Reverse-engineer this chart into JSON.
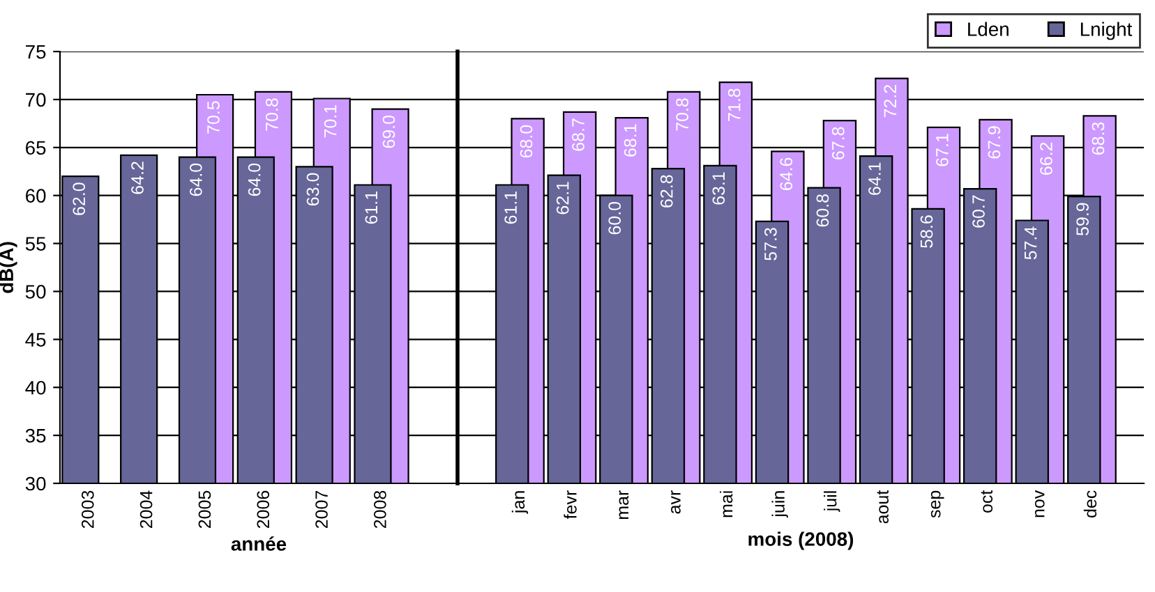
{
  "chart_data": [
    {
      "type": "bar",
      "xlabel": "année",
      "ylabel": "dB(A)",
      "categories": [
        "2003",
        "2004",
        "2005",
        "2006",
        "2007",
        "2008"
      ],
      "series": [
        {
          "color": "#666699",
          "values": [
            62.0,
            64.2,
            64.0,
            64.0,
            63.0,
            61.1
          ],
          "value_labels": [
            "62.0",
            "64.2",
            "64.0",
            "64.0",
            "63.0",
            "61.1"
          ]
        },
        {
          "color": "#cc99ff",
          "values": [
            null,
            null,
            70.5,
            70.8,
            70.1,
            69.0
          ],
          "value_labels": [
            null,
            null,
            "70.5",
            "70.8",
            "70.1",
            "69.0"
          ]
        }
      ],
      "ylim": [
        30,
        75
      ],
      "yticks": [
        30,
        35,
        40,
        45,
        50,
        55,
        60,
        65,
        70,
        75
      ],
      "grid": "y"
    },
    {
      "type": "bar",
      "xlabel": "mois (2008)",
      "categories": [
        "jan",
        "fevr",
        "mar",
        "avr",
        "mai",
        "juin",
        "juil",
        "aout",
        "sep",
        "oct",
        "nov",
        "dec"
      ],
      "series": [
        {
          "name": "Lnight",
          "color": "#666699",
          "values": [
            61.1,
            62.1,
            60.0,
            62.8,
            63.1,
            57.3,
            60.8,
            64.1,
            58.6,
            60.7,
            57.4,
            59.9
          ],
          "value_labels": [
            "61.1",
            "62.1",
            "60.0",
            "62.8",
            "63.1",
            "57.3",
            "60.8",
            "64.1",
            "58.6",
            "60.7",
            "57.4",
            "59.9"
          ]
        },
        {
          "name": "Lden",
          "color": "#cc99ff",
          "values": [
            68.0,
            68.7,
            68.1,
            70.8,
            71.8,
            64.6,
            67.8,
            72.2,
            67.1,
            67.9,
            66.2,
            68.3
          ],
          "value_labels": [
            "68.0",
            "68.7",
            "68.1",
            "70.8",
            "71.8",
            "64.6",
            "67.8",
            "72.2",
            "67.1",
            "67.9",
            "66.2",
            "68.3"
          ]
        }
      ],
      "ylim": [
        30,
        75
      ],
      "yticks": [
        30,
        35,
        40,
        45,
        50,
        55,
        60,
        65,
        70,
        75
      ],
      "grid": "y",
      "tick_labels": "x",
      "legend": "top right"
    }
  ]
}
